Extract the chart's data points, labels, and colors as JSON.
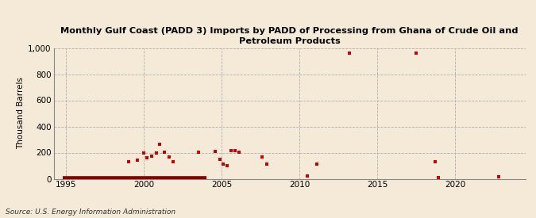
{
  "title": "Monthly Gulf Coast (PADD 3) Imports by PADD of Processing from Ghana of Crude Oil and\nPetroleum Products",
  "ylabel": "Thousand Barrels",
  "source": "Source: U.S. Energy Information Administration",
  "background_color": "#f5ead8",
  "ylim": [
    0,
    1000
  ],
  "yticks": [
    0,
    200,
    400,
    600,
    800,
    1000
  ],
  "xlim": [
    1994.2,
    2024.5
  ],
  "xticks": [
    1995,
    2000,
    2005,
    2010,
    2015,
    2020
  ],
  "scatter_color": "#cc0000",
  "line_color": "#8b0000",
  "scatter_data": [
    [
      1999.0,
      130
    ],
    [
      1999.6,
      145
    ],
    [
      2000.0,
      200
    ],
    [
      2000.2,
      160
    ],
    [
      2000.5,
      175
    ],
    [
      2000.8,
      200
    ],
    [
      2001.0,
      265
    ],
    [
      2001.3,
      205
    ],
    [
      2001.6,
      165
    ],
    [
      2001.9,
      130
    ],
    [
      2003.5,
      205
    ],
    [
      2004.6,
      210
    ],
    [
      2004.9,
      150
    ],
    [
      2005.1,
      110
    ],
    [
      2005.35,
      100
    ],
    [
      2005.6,
      215
    ],
    [
      2005.85,
      215
    ],
    [
      2006.1,
      205
    ],
    [
      2007.6,
      165
    ],
    [
      2007.9,
      115
    ],
    [
      2010.5,
      20
    ],
    [
      2011.1,
      110
    ],
    [
      2013.2,
      960
    ],
    [
      2017.5,
      960
    ],
    [
      2018.7,
      130
    ],
    [
      2018.9,
      10
    ],
    [
      2022.8,
      15
    ]
  ],
  "line_data_x": [
    1994.8,
    2004.0
  ],
  "line_data_y": [
    0,
    0
  ]
}
